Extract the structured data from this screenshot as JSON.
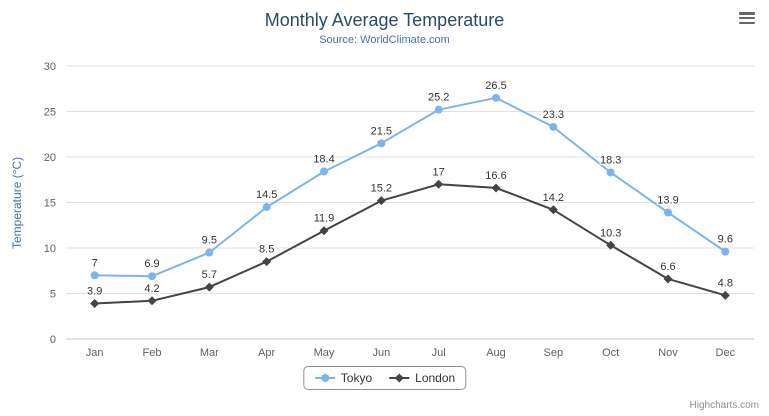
{
  "chart_data": {
    "type": "line",
    "title": "Monthly Average Temperature",
    "subtitle": "Source: WorldClimate.com",
    "categories": [
      "Jan",
      "Feb",
      "Mar",
      "Apr",
      "May",
      "Jun",
      "Jul",
      "Aug",
      "Sep",
      "Oct",
      "Nov",
      "Dec"
    ],
    "series": [
      {
        "name": "Tokyo",
        "color": "#7cb5ec",
        "marker": "circle",
        "values": [
          7,
          6.9,
          9.5,
          14.5,
          18.4,
          21.5,
          25.2,
          26.5,
          23.3,
          18.3,
          13.9,
          9.6
        ]
      },
      {
        "name": "London",
        "color": "#434348",
        "marker": "diamond",
        "values": [
          3.9,
          4.2,
          5.7,
          8.5,
          11.9,
          15.2,
          17,
          16.6,
          14.2,
          10.3,
          6.6,
          4.8
        ]
      }
    ],
    "xlabel": "",
    "ylabel": "Temperature (°C)",
    "ylim": [
      0,
      30
    ],
    "yticks": [
      0,
      5,
      10,
      15,
      20,
      25,
      30
    ],
    "grid": true,
    "data_labels": true,
    "legend_position": "bottom"
  },
  "credits": {
    "label": "Highcharts.com"
  },
  "icons": {
    "export_menu": "hamburger-icon"
  },
  "colors": {
    "grid": "#e0e0e0",
    "axis_line": "#c0c8d0",
    "tick_label": "#606060"
  }
}
